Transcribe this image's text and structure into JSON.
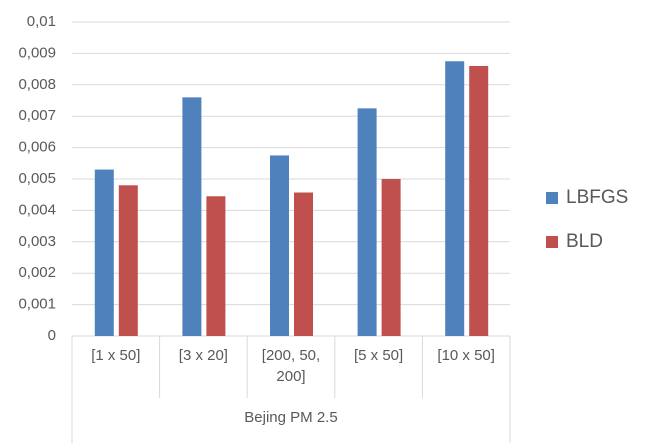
{
  "chart_data": {
    "type": "bar",
    "categories": [
      "[1 x 50]",
      "[3 x 20]",
      "[200, 50, 200]",
      "[5 x 50]",
      "[10 x 50]"
    ],
    "group_label": "Bejing PM 2.5",
    "series": [
      {
        "name": "LBFGS",
        "color": "#4f81bd",
        "values": [
          0.0053,
          0.0076,
          0.00575,
          0.00725,
          0.00875
        ]
      },
      {
        "name": "BLD",
        "color": "#c0504d",
        "values": [
          0.0048,
          0.00445,
          0.00457,
          0.005,
          0.0086
        ]
      }
    ],
    "ylim": [
      0,
      0.01
    ],
    "yticks": [
      0,
      {
        "value": 0.001,
        "label": "0,001"
      },
      {
        "value": 0.002,
        "label": "0,002"
      },
      {
        "value": 0.003,
        "label": "0,003"
      },
      {
        "value": 0.004,
        "label": "0,004"
      },
      {
        "value": 0.005,
        "label": "0,005"
      },
      {
        "value": 0.006,
        "label": "0,006"
      },
      {
        "value": 0.007,
        "label": "0,007"
      },
      {
        "value": 0.008,
        "label": "0,008"
      },
      {
        "value": 0.009,
        "label": "0,009"
      },
      {
        "value": 0.01,
        "label": "0,01"
      }
    ],
    "grid": true,
    "legend": "right"
  }
}
